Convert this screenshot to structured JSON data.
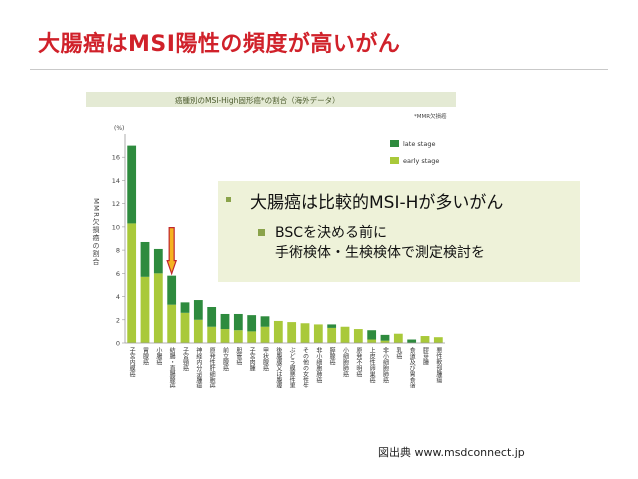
{
  "slide": {
    "title": "大腸癌はMSI陽性の頻度が高いがん",
    "source": "図出典 www.msdconnect.jp"
  },
  "overlay": {
    "bullet1": "大腸癌は比較的MSI-Hが多いがん",
    "bullet2_line1": "BSCを決める前に",
    "bullet2_line2": "手術検体・生検検体で測定検討を"
  },
  "colors": {
    "title": "#d0212a",
    "late_stage": "#2e8b3e",
    "early_stage": "#a9c93a",
    "arrow_fill": "#f5b321",
    "arrow_stroke": "#c0262c",
    "overlay_bg": "#edf1d7"
  },
  "chart_data": {
    "type": "bar",
    "stacked": true,
    "title": "癌腫別のMSI-High固形癌*の割合（海外データ）",
    "note": "*MMR欠損癌",
    "ylabel": "MMR欠損癌の割合",
    "yunit": "(%)",
    "ylim": [
      0,
      18
    ],
    "yticks": [
      0,
      2,
      4,
      6,
      8,
      10,
      12,
      14,
      16
    ],
    "legend": [
      "late stage",
      "early stage"
    ],
    "legend_position": "top-right",
    "categories": [
      "子宮内膜癌",
      "胃腺癌",
      "小腸癌",
      "結腸・直腸腺癌",
      "子宮頸癌",
      "神経内分泌腫瘍",
      "原発性肝細胞癌",
      "前立腺癌",
      "胆管癌",
      "子宮肉腫",
      "甲状腺癌",
      "後腹膜又は腹膜肉腫",
      "ぶどう膜悪性黒色腫",
      "その他の女性生殖器の悪性腫瘍",
      "非小細胞肺癌",
      "膵腺癌",
      "小細胞肺癌",
      "原発不明癌",
      "上皮性卵巣癌",
      "非小細胞肺癌",
      "乳癌",
      "食道及び胃食道接合部癌",
      "膠芽腫",
      "悪性軟部腫瘍"
    ],
    "series": [
      {
        "name": "late stage",
        "values": [
          6.7,
          3.0,
          2.1,
          2.5,
          0.9,
          1.7,
          1.7,
          1.3,
          1.4,
          1.4,
          0.9,
          0.0,
          0.0,
          0.0,
          0.0,
          0.3,
          0.0,
          0.0,
          0.8,
          0.5,
          0.0,
          0.3,
          0.0,
          0.0
        ]
      },
      {
        "name": "early stage",
        "values": [
          10.3,
          5.7,
          6.0,
          3.3,
          2.6,
          2.0,
          1.4,
          1.2,
          1.1,
          1.0,
          1.4,
          1.9,
          1.8,
          1.7,
          1.6,
          1.3,
          1.4,
          1.2,
          0.3,
          0.2,
          0.8,
          0.0,
          0.6,
          0.5
        ]
      }
    ]
  }
}
